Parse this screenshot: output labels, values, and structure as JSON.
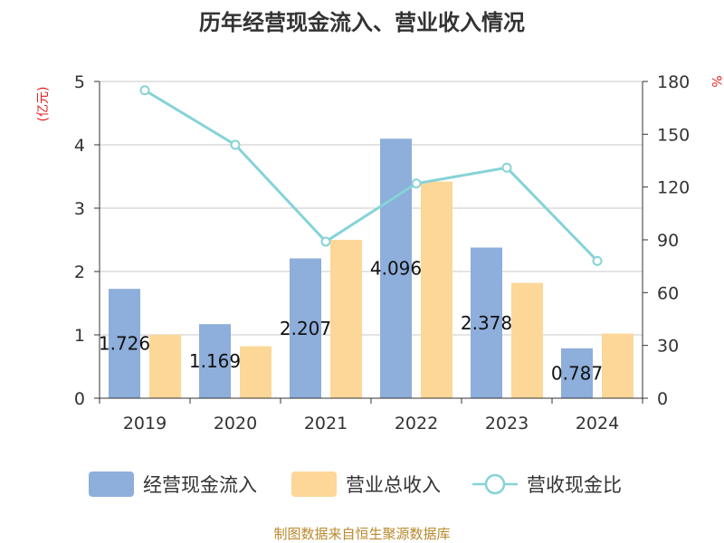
{
  "chart_data": {
    "type": "bar",
    "title": "历年经营现金流入、营业收入情况",
    "categories": [
      "2019",
      "2020",
      "2021",
      "2022",
      "2023",
      "2024"
    ],
    "y_left": {
      "unit": "(亿元)",
      "ylim": [
        0,
        5
      ],
      "ticks": [
        "0",
        "1",
        "2",
        "3",
        "4",
        "5"
      ]
    },
    "y_right": {
      "unit": "%",
      "ylim": [
        0,
        180
      ],
      "ticks": [
        "0",
        "30",
        "60",
        "90",
        "120",
        "150",
        "180"
      ]
    },
    "series": [
      {
        "name": "经营现金流入",
        "type": "bar",
        "axis": "left",
        "color": "#8eaedb",
        "values": [
          1.726,
          1.169,
          2.207,
          4.096,
          2.378,
          0.787
        ],
        "labels": [
          "1.726",
          "1.169",
          "2.207",
          "4.096",
          "2.378",
          "0.787"
        ]
      },
      {
        "name": "营业总收入",
        "type": "bar",
        "axis": "left",
        "color": "#fdd797",
        "values": [
          1.0,
          0.82,
          2.5,
          3.42,
          1.82,
          1.02
        ]
      },
      {
        "name": "营收现金比",
        "type": "line",
        "axis": "right",
        "color": "#86d3d6",
        "values": [
          175,
          144,
          89,
          122,
          131,
          78
        ]
      }
    ],
    "grid": true,
    "legend_position": "bottom",
    "source_note": "制图数据来自恒生聚源数据库"
  }
}
